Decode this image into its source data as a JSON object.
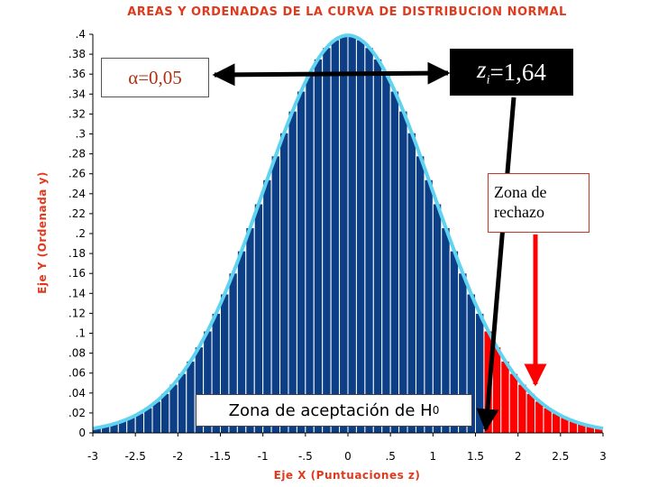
{
  "chart_data": {
    "type": "area",
    "title": "AREAS Y ORDENADAS DE LA CURVA DE DISTRIBUCION NORMAL",
    "xlabel": "Eje X (Puntuaciones z)",
    "ylabel": "Eje Y (Ordenada y)",
    "xlim": [
      -3,
      3
    ],
    "ylim": [
      0,
      0.4
    ],
    "x_ticks": [
      -3,
      -2.5,
      -2,
      -1.5,
      -1,
      -0.5,
      0,
      0.5,
      1,
      1.5,
      2,
      2.5,
      3
    ],
    "x_tick_labels": [
      "-3",
      "-2.5",
      "-2",
      "-1.5",
      "-1",
      "-.5",
      "0",
      ".5",
      "1",
      "1.5",
      "2",
      "2.5",
      "3"
    ],
    "y_ticks": [
      0,
      0.02,
      0.04,
      0.06,
      0.08,
      0.1,
      0.12,
      0.14,
      0.16,
      0.18,
      0.2,
      0.22,
      0.24,
      0.26,
      0.28,
      0.3,
      0.32,
      0.34,
      0.36,
      0.38,
      0.4
    ],
    "y_tick_labels": [
      "0",
      ".02",
      ".04",
      ".06",
      ".08",
      ".1",
      ".12",
      ".14",
      ".16",
      ".18",
      ".2",
      ".22",
      ".24",
      ".26",
      ".28",
      ".3",
      ".32",
      ".34",
      ".36",
      ".38",
      ".4"
    ],
    "distribution": {
      "mean": 0,
      "sd": 1
    },
    "bar_width": 0.1,
    "critical_value": 1.64,
    "colors": {
      "acceptance_fill": "#0c3f86",
      "rejection_fill": "#ff0000",
      "bar_separator": "#ffffff",
      "curve_outline": "#5fd3f0",
      "labels": "#e03a1e"
    }
  },
  "annotations": {
    "alpha": "α=0,05",
    "critical_z": {
      "var": "z",
      "sub": "i",
      "value": "=1,64"
    },
    "rejection_zone": "Zona de rechazo",
    "acceptance_zone": {
      "text": "Zona de aceptación de H",
      "sub": "0"
    }
  }
}
